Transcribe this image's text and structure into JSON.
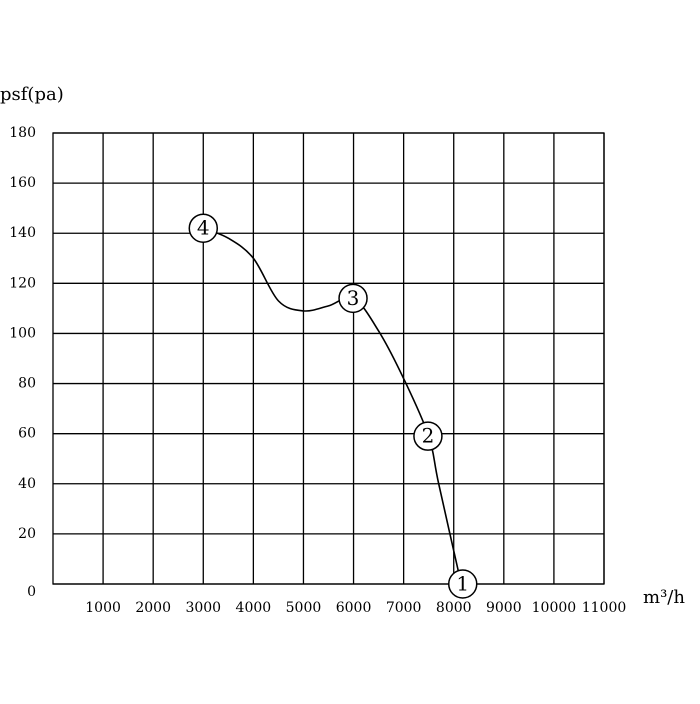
{
  "chart_data": {
    "type": "line",
    "y_label": "psf(pa)",
    "x_label": "m³/h",
    "xlim": [
      0,
      11000
    ],
    "xticks": [
      1000,
      2000,
      3000,
      4000,
      5000,
      6000,
      7000,
      8000,
      9000,
      10000,
      11000
    ],
    "ylim": [
      0,
      180
    ],
    "yticks": [
      0,
      20,
      40,
      60,
      80,
      100,
      120,
      140,
      160,
      180
    ],
    "grid": true,
    "color": "#000000",
    "x": [
      3000,
      3500,
      4000,
      4500,
      5000,
      5500,
      6000,
      6500,
      7000,
      7500,
      7700,
      8150
    ],
    "values": [
      142,
      138,
      130,
      113,
      109,
      111,
      114,
      101,
      82,
      59,
      40,
      0
    ],
    "points": [
      {
        "label": "4",
        "x": 3000,
        "y": 142
      },
      {
        "label": "3",
        "x": 5990,
        "y": 114
      },
      {
        "label": "2",
        "x": 7485,
        "y": 59
      },
      {
        "label": "1",
        "x": 8180,
        "y": 0
      }
    ]
  }
}
